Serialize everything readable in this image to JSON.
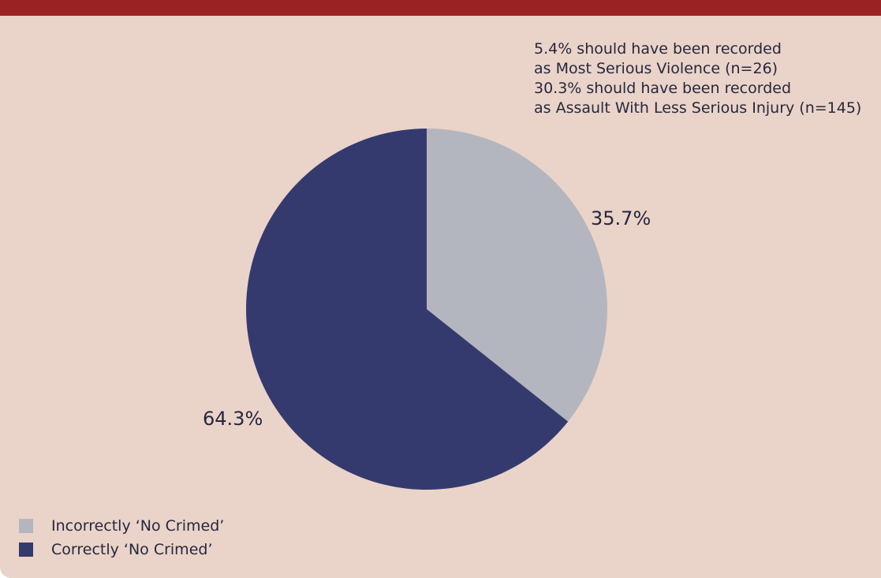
{
  "chart_data": {
    "type": "pie",
    "title": "",
    "slices": [
      {
        "label": "Incorrectly ‘No Crimed’",
        "value": 35.7,
        "value_label": "35.7%",
        "color": "#b4b6bf"
      },
      {
        "label": "Correctly ‘No Crimed’",
        "value": 64.3,
        "value_label": "64.3%",
        "color": "#353a6e"
      }
    ],
    "annotation_lines": [
      "5.4% should have been recorded",
      "as Most Serious Violence (n=26)",
      "30.3% should have been recorded",
      "as Assault With Less Serious Injury (n=145)"
    ],
    "legend_placement": "bottom-left",
    "start_angle": "12 o'clock",
    "direction": "clockwise"
  },
  "colors": {
    "panel_background": "#ead3c8",
    "header_bar": "#9b2222",
    "text": "#26283f"
  }
}
